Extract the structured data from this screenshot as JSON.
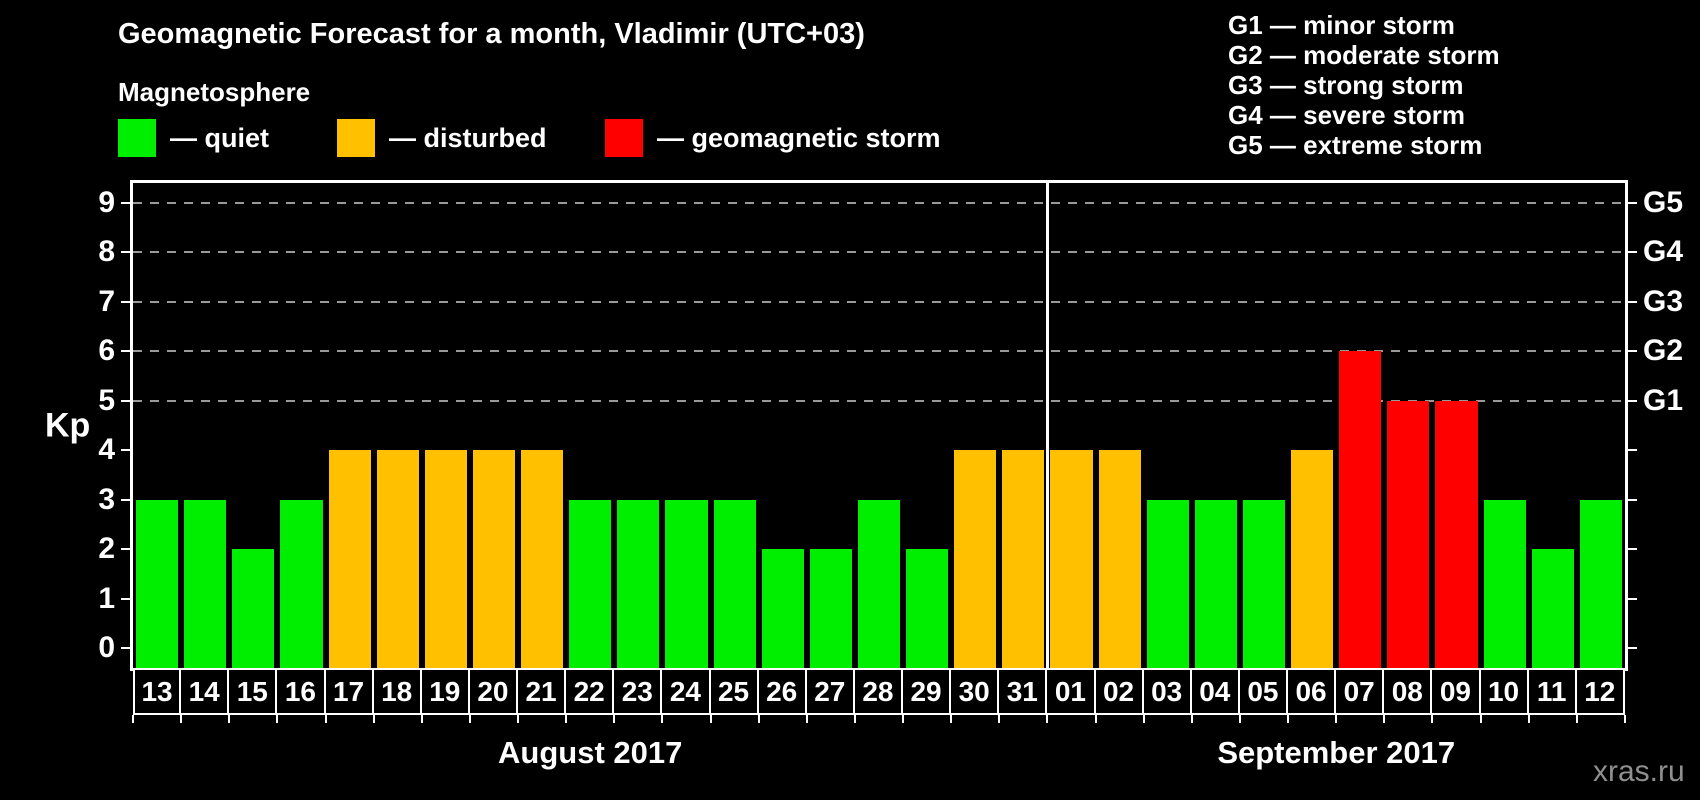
{
  "header": {
    "title": "Geomagnetic Forecast for a month, Vladimir (UTC+03)",
    "subtitle": "Magnetosphere"
  },
  "legend": {
    "items": [
      {
        "name": "quiet",
        "label": "— quiet",
        "color": "#00EE00"
      },
      {
        "name": "disturbed",
        "label": "— disturbed",
        "color": "#FFC000"
      },
      {
        "name": "storm",
        "label": "— geomagnetic storm",
        "color": "#FF0000"
      }
    ]
  },
  "g_scale_legend": {
    "items": [
      "G1 — minor storm",
      "G2 — moderate storm",
      "G3 — strong storm",
      "G4 — severe storm",
      "G5 — extreme storm"
    ]
  },
  "watermark": "xras.ru",
  "chart_data": {
    "type": "bar",
    "title": "Geomagnetic Forecast for a month, Vladimir (UTC+03)",
    "ylabel": "Kp",
    "ylim": [
      -0.4,
      9.4
    ],
    "yticks": [
      0,
      1,
      2,
      3,
      4,
      5,
      6,
      7,
      8,
      9
    ],
    "gridlines": [
      5,
      6,
      7,
      8,
      9
    ],
    "grid_style": "dashed",
    "right_axis": {
      "labels": [
        {
          "label": "G1",
          "kp": 5
        },
        {
          "label": "G2",
          "kp": 6
        },
        {
          "label": "G3",
          "kp": 7
        },
        {
          "label": "G4",
          "kp": 8
        },
        {
          "label": "G5",
          "kp": 9
        }
      ],
      "ticks": [
        0,
        1,
        2,
        3,
        4,
        5,
        6,
        7,
        8,
        9
      ]
    },
    "colors": {
      "quiet": "#00EE00",
      "disturbed": "#FFC000",
      "storm": "#FF0000"
    },
    "months": [
      {
        "label": "August 2017",
        "days": 19
      },
      {
        "label": "September 2017",
        "days": 12
      }
    ],
    "categories": [
      "13",
      "14",
      "15",
      "16",
      "17",
      "18",
      "19",
      "20",
      "21",
      "22",
      "23",
      "24",
      "25",
      "26",
      "27",
      "28",
      "29",
      "30",
      "31",
      "01",
      "02",
      "03",
      "04",
      "05",
      "06",
      "07",
      "08",
      "09",
      "10",
      "11",
      "12"
    ],
    "values": [
      3,
      3,
      2,
      3,
      4,
      4,
      4,
      4,
      4,
      3,
      3,
      3,
      3,
      2,
      2,
      3,
      2,
      4,
      4,
      4,
      4,
      3,
      3,
      3,
      4,
      6,
      5,
      5,
      3,
      2,
      3
    ],
    "statuses": [
      "quiet",
      "quiet",
      "quiet",
      "quiet",
      "disturbed",
      "disturbed",
      "disturbed",
      "disturbed",
      "disturbed",
      "quiet",
      "quiet",
      "quiet",
      "quiet",
      "quiet",
      "quiet",
      "quiet",
      "quiet",
      "disturbed",
      "disturbed",
      "disturbed",
      "disturbed",
      "quiet",
      "quiet",
      "quiet",
      "disturbed",
      "storm",
      "storm",
      "storm",
      "quiet",
      "quiet",
      "quiet"
    ]
  }
}
